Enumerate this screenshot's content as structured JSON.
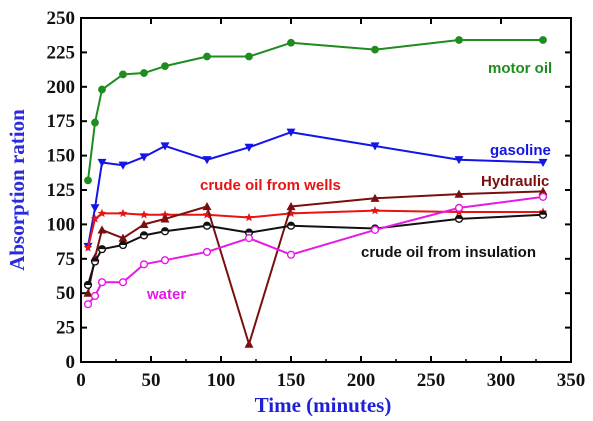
{
  "chart_data": {
    "type": "line",
    "xlabel": "Time (minutes)",
    "ylabel": "Absorption ration",
    "xlim": [
      0,
      350
    ],
    "ylim": [
      0,
      250
    ],
    "x_ticks": [
      "0",
      "50",
      "100",
      "150",
      "200",
      "250",
      "300",
      "350"
    ],
    "y_ticks": [
      "0",
      "25",
      "50",
      "75",
      "100",
      "125",
      "150",
      "175",
      "200",
      "225",
      "250"
    ],
    "grid": false,
    "colors": {
      "axis": "#000000",
      "xlabel": "#1f1fd6",
      "ylabel": "#2a2ae0"
    },
    "series": [
      {
        "name": "motor oil",
        "color": "#1e8c1e",
        "marker": "circle",
        "x": [
          5,
          10,
          15,
          30,
          45,
          60,
          90,
          120,
          150,
          210,
          270,
          330
        ],
        "y": [
          132,
          174,
          198,
          209,
          210,
          215,
          222,
          222,
          232,
          227,
          234,
          234
        ]
      },
      {
        "name": "gasoline",
        "color": "#1414e6",
        "marker": "triangle-down",
        "x": [
          5,
          10,
          15,
          30,
          45,
          60,
          90,
          120,
          150,
          210,
          270,
          330
        ],
        "y": [
          84,
          112,
          145,
          143,
          149,
          157,
          147,
          156,
          167,
          157,
          147,
          145
        ]
      },
      {
        "name": "crude oil from wells",
        "color": "#e61414",
        "marker": "star",
        "x": [
          5,
          10,
          15,
          30,
          45,
          60,
          90,
          120,
          150,
          210,
          270,
          330
        ],
        "y": [
          83,
          104,
          108,
          108,
          107,
          107,
          107,
          105,
          108,
          110,
          109,
          109
        ]
      },
      {
        "name": "Hydraulic",
        "color": "#7a0f0f",
        "marker": "triangle-up",
        "x": [
          5,
          10,
          15,
          30,
          45,
          60,
          90,
          120,
          150,
          210,
          270,
          330
        ],
        "y": [
          50,
          76,
          96,
          90,
          100,
          104,
          113,
          13,
          113,
          119,
          122,
          124
        ]
      },
      {
        "name": "crude oil from insulation",
        "color": "#111111",
        "marker": "half-circle",
        "x": [
          5,
          10,
          15,
          30,
          45,
          60,
          90,
          120,
          150,
          210,
          270,
          330
        ],
        "y": [
          56,
          73,
          82,
          85,
          92,
          95,
          99,
          94,
          99,
          97,
          104,
          107
        ]
      },
      {
        "name": "water",
        "color": "#e619e6",
        "marker": "open-circle",
        "x": [
          5,
          10,
          15,
          30,
          45,
          60,
          90,
          120,
          150,
          210,
          270,
          330
        ],
        "y": [
          42,
          48,
          58,
          58,
          71,
          74,
          80,
          90,
          78,
          96,
          112,
          120
        ]
      }
    ]
  }
}
